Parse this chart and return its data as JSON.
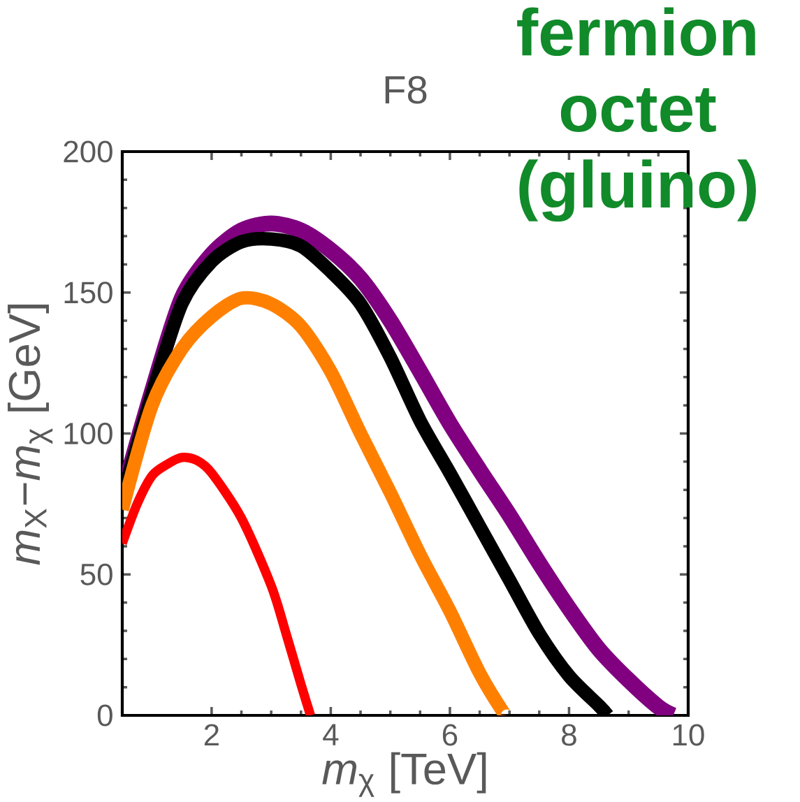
{
  "chart_data": {
    "type": "line",
    "title": "F8",
    "xlabel": "*m*$_{χ}$ [TeV]",
    "ylabel": "*m*$_{X}$−*m*$_{χ}$ [GeV]",
    "annotations": [
      "fermion octet (gluino)"
    ],
    "xlim": [
      0.5,
      10
    ],
    "ylim": [
      0,
      200
    ],
    "xticks": [
      2,
      4,
      6,
      8,
      10
    ],
    "yticks": [
      0,
      50,
      100,
      150,
      200
    ],
    "grid": false,
    "marker": "none",
    "line_style": "solid",
    "series": [
      {
        "color": "#800080",
        "x": [
          0.5,
          1.0,
          1.5,
          2.0,
          2.5,
          3.0,
          3.5,
          4.0,
          4.5,
          5.0,
          5.5,
          6.0,
          6.5,
          7.0,
          7.5,
          8.0,
          8.5,
          9.0,
          9.5,
          9.75
        ],
        "values": [
          78,
          115,
          148,
          163.5,
          172,
          174.5,
          172,
          165,
          155,
          140,
          122,
          103.5,
          87,
          71,
          54,
          38,
          23.5,
          12.5,
          3,
          0
        ]
      },
      {
        "color": "#000000",
        "x": [
          0.5,
          1.0,
          1.5,
          2.0,
          2.5,
          3.0,
          3.5,
          4.0,
          4.5,
          5.0,
          5.5,
          6.0,
          6.5,
          7.0,
          7.5,
          8.0,
          8.5,
          8.65
        ],
        "values": [
          77,
          114,
          146,
          161,
          168,
          169,
          166.5,
          157.5,
          146,
          127,
          104.5,
          86,
          67,
          48,
          29,
          14,
          3.5,
          0
        ]
      },
      {
        "color": "#ff8000",
        "x": [
          0.5,
          1.0,
          1.5,
          2.0,
          2.5,
          3.0,
          3.5,
          4.0,
          4.5,
          5.0,
          5.5,
          6.0,
          6.5,
          6.9,
          6.97
        ],
        "values": [
          73,
          110,
          130,
          141.5,
          148,
          146,
          138,
          122,
          100,
          79,
          57,
          37,
          15,
          1,
          0
        ]
      },
      {
        "color": "#ff0000",
        "x": [
          0.5,
          0.75,
          1.0,
          1.25,
          1.5,
          1.75,
          2.0,
          2.5,
          3.0,
          3.25,
          3.5,
          3.66
        ],
        "values": [
          61,
          75,
          85,
          89,
          91.5,
          90.5,
          86,
          70,
          46,
          29,
          11,
          0
        ]
      }
    ]
  }
}
